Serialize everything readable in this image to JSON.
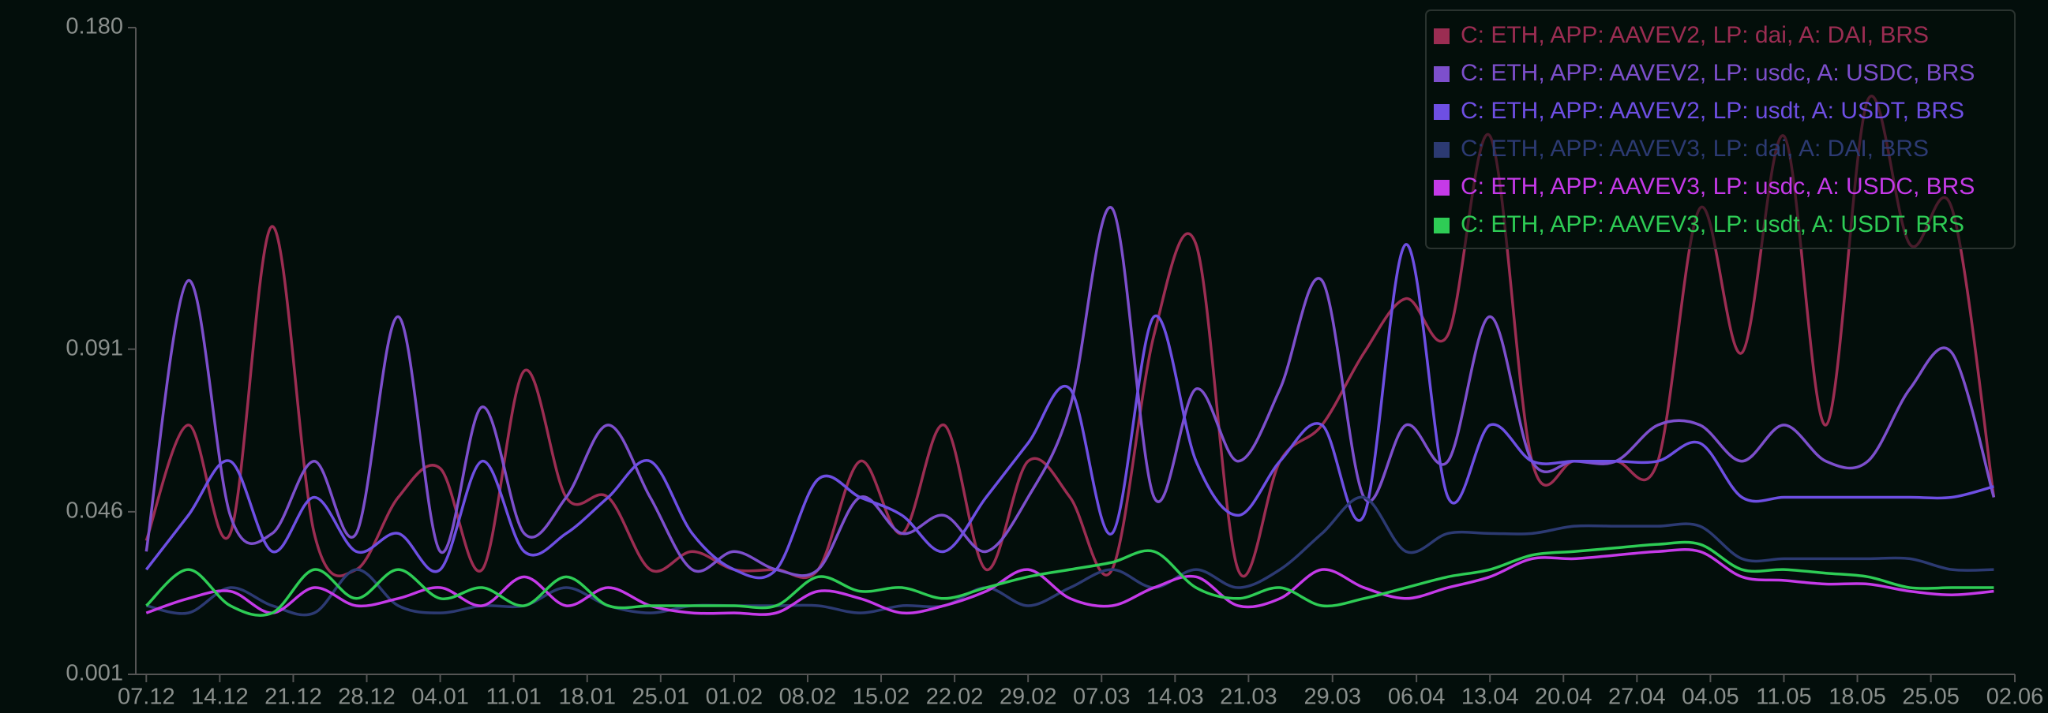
{
  "chart_data": {
    "type": "line",
    "x": [
      0,
      4,
      8,
      12,
      16,
      20,
      24,
      28,
      32,
      36,
      40,
      44,
      48,
      52,
      56,
      60,
      64,
      68,
      72,
      76,
      80,
      84,
      88,
      92,
      96,
      100,
      104,
      108,
      112,
      116,
      120,
      124,
      128,
      132,
      136,
      140,
      144,
      148,
      152,
      156,
      160,
      164,
      168,
      172,
      176
    ],
    "xlim": [
      -1,
      178
    ],
    "xticks": [
      {
        "value": 0,
        "label": "07.12"
      },
      {
        "value": 7,
        "label": "14.12"
      },
      {
        "value": 14,
        "label": "21.12"
      },
      {
        "value": 21,
        "label": "28.12"
      },
      {
        "value": 28,
        "label": "04.01"
      },
      {
        "value": 35,
        "label": "11.01"
      },
      {
        "value": 42,
        "label": "18.01"
      },
      {
        "value": 49,
        "label": "25.01"
      },
      {
        "value": 56,
        "label": "01.02"
      },
      {
        "value": 63,
        "label": "08.02"
      },
      {
        "value": 70,
        "label": "15.02"
      },
      {
        "value": 77,
        "label": "22.02"
      },
      {
        "value": 84,
        "label": "29.02"
      },
      {
        "value": 91,
        "label": "07.03"
      },
      {
        "value": 98,
        "label": "14.03"
      },
      {
        "value": 105,
        "label": "21.03"
      },
      {
        "value": 113,
        "label": "29.03"
      },
      {
        "value": 121,
        "label": "06.04"
      },
      {
        "value": 128,
        "label": "13.04"
      },
      {
        "value": 135,
        "label": "20.04"
      },
      {
        "value": 142,
        "label": "27.04"
      },
      {
        "value": 149,
        "label": "04.05"
      },
      {
        "value": 156,
        "label": "11.05"
      },
      {
        "value": 163,
        "label": "18.05"
      },
      {
        "value": 170,
        "label": "25.05"
      },
      {
        "value": 178,
        "label": "02.06"
      }
    ],
    "ylim": [
      0.001,
      0.18
    ],
    "yticks": [
      0.001,
      0.046,
      0.091,
      {
        "value": 0.18,
        "label": "0.180"
      }
    ],
    "legend": "top-right",
    "series": [
      {
        "name": "C: ETH, APP: AAVEV2, LP: dai, A: DAI, BRS",
        "color": "#9b2d52",
        "values": [
          0.038,
          0.07,
          0.04,
          0.125,
          0.04,
          0.03,
          0.05,
          0.058,
          0.03,
          0.085,
          0.05,
          0.05,
          0.03,
          0.035,
          0.03,
          0.03,
          0.03,
          0.06,
          0.04,
          0.07,
          0.03,
          0.06,
          0.05,
          0.03,
          0.095,
          0.12,
          0.03,
          0.06,
          0.07,
          0.09,
          0.105,
          0.095,
          0.15,
          0.06,
          0.06,
          0.06,
          0.06,
          0.13,
          0.09,
          0.15,
          0.07,
          0.16,
          0.12,
          0.13,
          0.05
        ]
      },
      {
        "name": "C: ETH, APP: AAVEV2, LP: usdc, A: USDC, BRS",
        "color": "#7d4fcc",
        "values": [
          0.035,
          0.11,
          0.045,
          0.04,
          0.06,
          0.04,
          0.1,
          0.035,
          0.075,
          0.04,
          0.05,
          0.07,
          0.05,
          0.03,
          0.035,
          0.03,
          0.03,
          0.05,
          0.04,
          0.045,
          0.035,
          0.05,
          0.075,
          0.13,
          0.05,
          0.08,
          0.06,
          0.08,
          0.11,
          0.05,
          0.07,
          0.06,
          0.1,
          0.06,
          0.06,
          0.06,
          0.07,
          0.07,
          0.06,
          0.07,
          0.06,
          0.06,
          0.08,
          0.09,
          0.05
        ]
      },
      {
        "name": "C: ETH, APP: AAVEV2, LP: usdt, A: USDT, BRS",
        "color": "#6e4fe3",
        "values": [
          0.03,
          0.045,
          0.06,
          0.035,
          0.05,
          0.035,
          0.04,
          0.03,
          0.06,
          0.035,
          0.04,
          0.05,
          0.06,
          0.04,
          0.03,
          0.03,
          0.055,
          0.05,
          0.045,
          0.035,
          0.05,
          0.065,
          0.08,
          0.04,
          0.1,
          0.06,
          0.045,
          0.06,
          0.07,
          0.045,
          0.12,
          0.05,
          0.07,
          0.06,
          0.06,
          0.06,
          0.06,
          0.065,
          0.05,
          0.05,
          0.05,
          0.05,
          0.05,
          0.05,
          0.053
        ]
      },
      {
        "name": "C: ETH, APP: AAVEV3, LP: dai, A: DAI, BRS",
        "color": "#2c3a72",
        "values": [
          0.02,
          0.018,
          0.025,
          0.02,
          0.018,
          0.03,
          0.02,
          0.018,
          0.02,
          0.02,
          0.025,
          0.02,
          0.018,
          0.02,
          0.02,
          0.02,
          0.02,
          0.018,
          0.02,
          0.02,
          0.025,
          0.02,
          0.025,
          0.03,
          0.025,
          0.03,
          0.025,
          0.03,
          0.04,
          0.05,
          0.035,
          0.04,
          0.04,
          0.04,
          0.042,
          0.042,
          0.042,
          0.042,
          0.033,
          0.033,
          0.033,
          0.033,
          0.033,
          0.03,
          0.03
        ]
      },
      {
        "name": "C: ETH, APP: AAVEV3, LP: usdc, A: USDC, BRS",
        "color": "#c53ae8",
        "values": [
          0.018,
          0.022,
          0.024,
          0.018,
          0.025,
          0.02,
          0.022,
          0.025,
          0.02,
          0.028,
          0.02,
          0.025,
          0.02,
          0.018,
          0.018,
          0.018,
          0.024,
          0.022,
          0.018,
          0.02,
          0.024,
          0.03,
          0.022,
          0.02,
          0.025,
          0.028,
          0.02,
          0.022,
          0.03,
          0.025,
          0.022,
          0.025,
          0.028,
          0.033,
          0.033,
          0.034,
          0.035,
          0.035,
          0.028,
          0.027,
          0.026,
          0.026,
          0.024,
          0.023,
          0.024
        ]
      },
      {
        "name": "C: ETH, APP: AAVEV3, LP: usdt, A: USDT, BRS",
        "color": "#2ecc55",
        "values": [
          0.02,
          0.03,
          0.02,
          0.018,
          0.03,
          0.022,
          0.03,
          0.022,
          0.025,
          0.02,
          0.028,
          0.02,
          0.02,
          0.02,
          0.02,
          0.02,
          0.028,
          0.024,
          0.025,
          0.022,
          0.025,
          0.028,
          0.03,
          0.032,
          0.035,
          0.025,
          0.022,
          0.025,
          0.02,
          0.022,
          0.025,
          0.028,
          0.03,
          0.034,
          0.035,
          0.036,
          0.037,
          0.037,
          0.03,
          0.03,
          0.029,
          0.028,
          0.025,
          0.025,
          0.025
        ]
      }
    ]
  }
}
